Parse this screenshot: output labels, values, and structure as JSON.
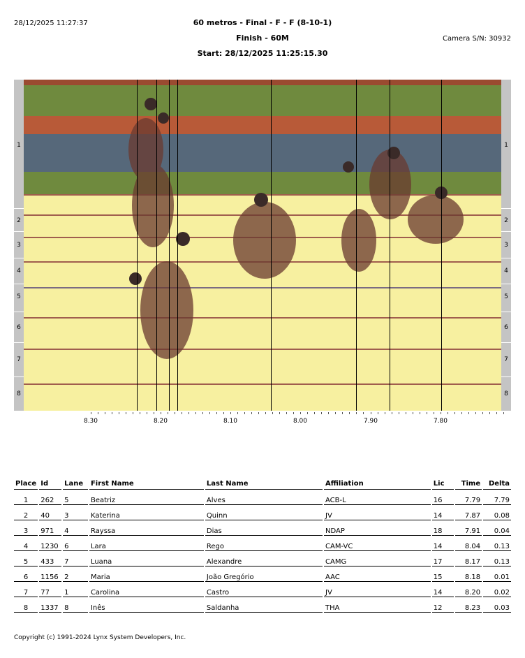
{
  "header": {
    "timestamp": "28/12/2025 11:27:37",
    "title": "60 metros - Final - F - F (8-10-1)",
    "subtitle": "Finish - 60M",
    "start": "Start: 28/12/2025 11:25:15.30",
    "camera": "Camera S/N: 30932"
  },
  "lanes": [
    "1",
    "2",
    "3",
    "4",
    "5",
    "6",
    "7",
    "8"
  ],
  "axis_labels": [
    "8.30",
    "8.20",
    "8.10",
    "8.00",
    "7.90",
    "7.80"
  ],
  "table": {
    "headers": [
      "Place",
      "Id",
      "Lane",
      "First Name",
      "Last Name",
      "Affiliation",
      "Lic",
      "Time",
      "Delta"
    ],
    "rows": [
      [
        "1",
        "262",
        "5",
        "Beatriz",
        "Alves",
        "ACB-L",
        "16",
        "7.79",
        "7.79"
      ],
      [
        "2",
        "40",
        "3",
        "Katerina",
        "Quinn",
        "JV",
        "14",
        "7.87",
        "0.08"
      ],
      [
        "3",
        "971",
        "4",
        "Rayssa",
        "Dias",
        "NDAP",
        "18",
        "7.91",
        "0.04"
      ],
      [
        "4",
        "1230",
        "6",
        "Lara",
        "Rego",
        "CAM-VC",
        "14",
        "8.04",
        "0.13"
      ],
      [
        "5",
        "433",
        "7",
        "Luana",
        "Alexandre",
        "CAMG",
        "17",
        "8.17",
        "0.13"
      ],
      [
        "6",
        "1156",
        "2",
        "Maria",
        "João Gregório",
        "AAC",
        "15",
        "8.18",
        "0.01"
      ],
      [
        "7",
        "77",
        "1",
        "Carolina",
        "Castro",
        "JV",
        "14",
        "8.20",
        "0.02"
      ],
      [
        "8",
        "1337",
        "8",
        "Inês",
        "Saldanha",
        "THA",
        "12",
        "8.23",
        "0.03"
      ]
    ]
  },
  "footer": {
    "copyright": "Copyright (c) 1991-2024 Lynx System Developers, Inc."
  }
}
